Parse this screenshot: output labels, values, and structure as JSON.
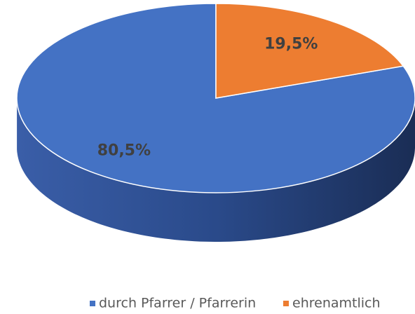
{
  "chart_data": {
    "type": "pie",
    "categories": [
      "durch Pfarrer / Pfarrerin",
      "ehrenamtlich"
    ],
    "values": [
      80.5,
      19.5
    ],
    "value_labels": [
      "80,5%",
      "19,5%"
    ],
    "colors": [
      "#4472c4",
      "#ed7d31"
    ],
    "legend": "bottom"
  }
}
